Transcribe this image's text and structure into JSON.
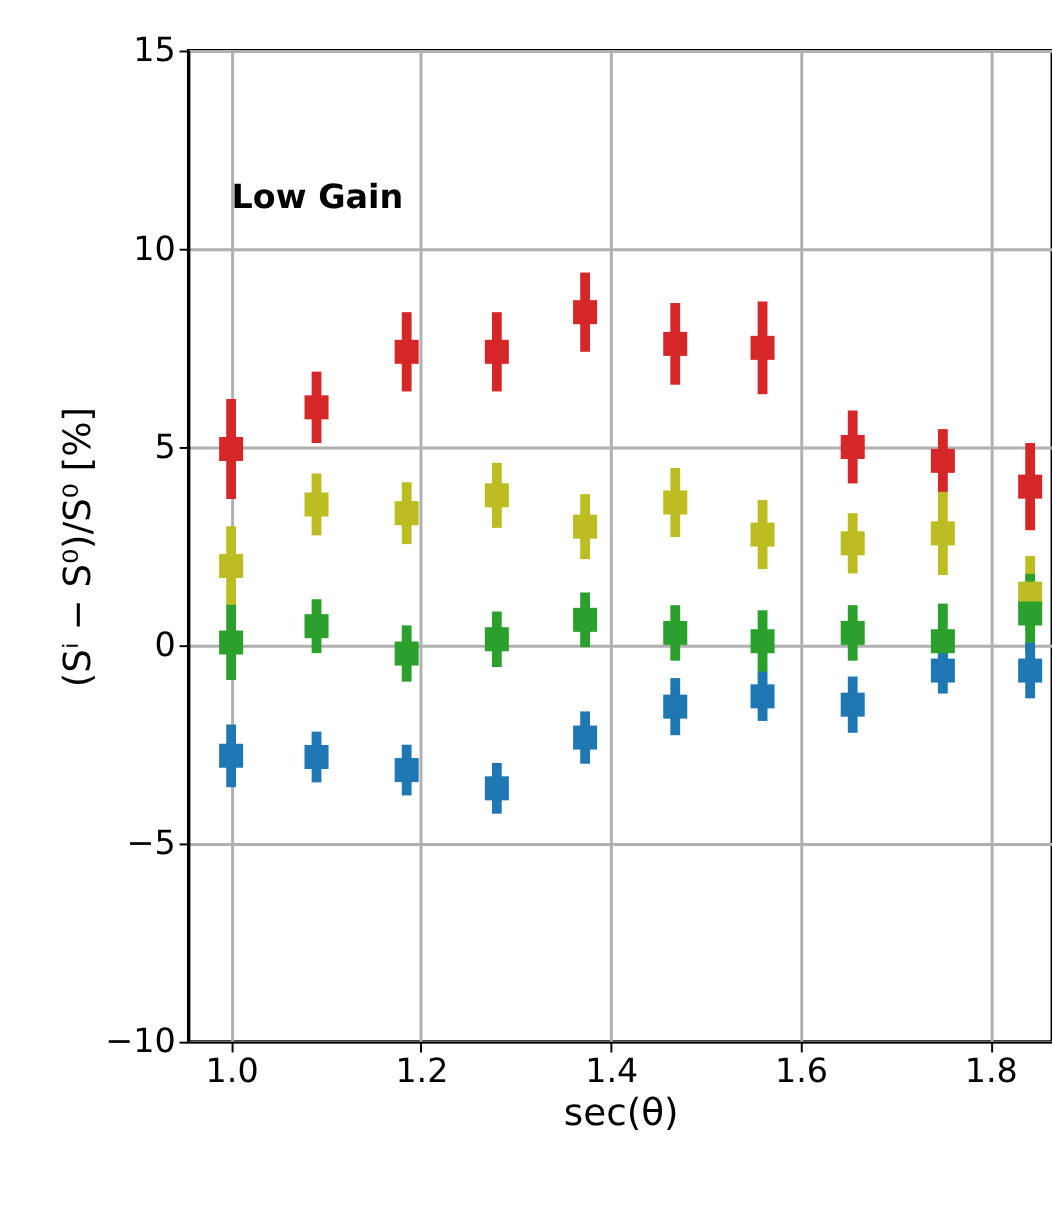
{
  "chart_data": {
    "type": "scatter",
    "xlabel": "sec(θ)",
    "ylabel": "(Sⁱ − S⁰)/S⁰ [%]",
    "annotations": [
      "Low Gain"
    ],
    "x": [
      1.0,
      1.09,
      1.185,
      1.28,
      1.373,
      1.468,
      1.56,
      1.655,
      1.75,
      1.842
    ],
    "series": [
      {
        "color": "#d62728",
        "values": [
          4.95,
          6.0,
          7.4,
          7.4,
          8.4,
          7.6,
          7.5,
          5.0,
          4.65,
          4.0
        ],
        "errors": [
          1.26,
          0.9,
          1.0,
          1.0,
          1.0,
          1.03,
          1.17,
          0.92,
          0.8,
          1.1
        ]
      },
      {
        "color": "#bcbd22",
        "values": [
          2.0,
          3.55,
          3.33,
          3.78,
          2.99,
          3.6,
          2.79,
          2.57,
          2.82,
          1.3
        ],
        "errors": [
          1.0,
          0.78,
          0.78,
          0.82,
          0.82,
          0.87,
          0.87,
          0.76,
          1.05,
          0.95
        ]
      },
      {
        "color": "#2ca02c",
        "values": [
          0.07,
          0.48,
          -0.21,
          0.15,
          0.64,
          0.31,
          0.1,
          0.31,
          0.1,
          0.8
        ],
        "errors": [
          0.95,
          0.68,
          0.71,
          0.7,
          0.69,
          0.7,
          0.78,
          0.7,
          0.95,
          1.0
        ]
      },
      {
        "color": "#1f77b4",
        "values": [
          -2.79,
          -2.82,
          -3.15,
          -3.61,
          -2.33,
          -1.55,
          -1.29,
          -1.5,
          -0.64,
          -0.64
        ],
        "errors": [
          0.79,
          0.64,
          0.64,
          0.64,
          0.66,
          0.72,
          0.62,
          0.71,
          0.58,
          0.7
        ]
      }
    ],
    "xlim": [
      0.955,
      1.865
    ],
    "xticks": [
      {
        "value": 1.0,
        "label": "1.0"
      },
      {
        "value": 1.2,
        "label": "1.2"
      },
      {
        "value": 1.4,
        "label": "1.4"
      },
      {
        "value": 1.6,
        "label": "1.6"
      },
      {
        "value": 1.8,
        "label": "1.8"
      }
    ],
    "ylim": [
      -10,
      15
    ],
    "yticks": [
      {
        "value": -10,
        "label": "−10"
      },
      {
        "value": -5,
        "label": "−5"
      },
      0,
      5,
      10,
      15
    ],
    "grid": true,
    "marker": "square"
  }
}
